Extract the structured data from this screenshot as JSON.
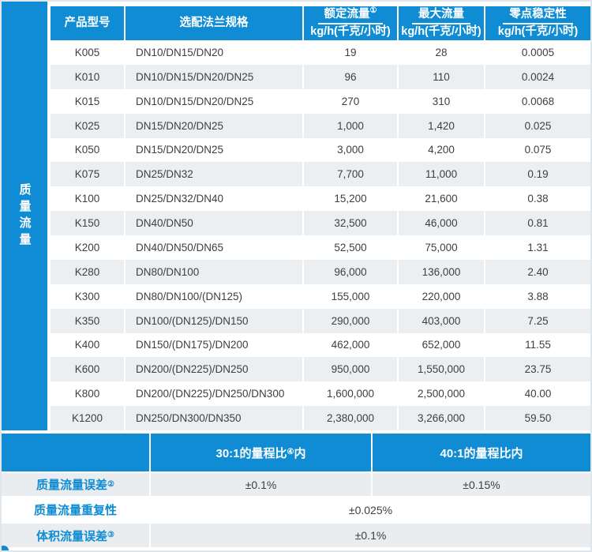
{
  "colors": {
    "accent_blue": "#0f8cd3",
    "row_alt_gray": "#eceff2",
    "bottom_alt_gray": "#e9edf0",
    "text_dark": "#3c4045",
    "frame_border": "#dfe6ec"
  },
  "table": {
    "group_label": "质量流量",
    "columns": [
      {
        "title": "产品型号",
        "sup": "",
        "unit": ""
      },
      {
        "title": "选配法兰规格",
        "sup": "",
        "unit": ""
      },
      {
        "title": "额定流量",
        "sup": "①",
        "unit": "kg/h(千克/小时)"
      },
      {
        "title": "最大流量",
        "sup": "",
        "unit": "kg/h(千克/小时)"
      },
      {
        "title": "零点稳定性",
        "sup": "",
        "unit": "kg/h(千克/小时)"
      }
    ],
    "rows": [
      {
        "model": "K005",
        "flange": "DN10/DN15/DN20",
        "rated": "19",
        "max": "28",
        "zero": "0.0005"
      },
      {
        "model": "K010",
        "flange": "DN10/DN15/DN20/DN25",
        "rated": "96",
        "max": "110",
        "zero": "0.0024"
      },
      {
        "model": "K015",
        "flange": "DN10/DN15/DN20/DN25",
        "rated": "270",
        "max": "310",
        "zero": "0.0068"
      },
      {
        "model": "K025",
        "flange": "DN15/DN20/DN25",
        "rated": "1,000",
        "max": "1,420",
        "zero": "0.025"
      },
      {
        "model": "K050",
        "flange": "DN15/DN20/DN25",
        "rated": "3,000",
        "max": "4,200",
        "zero": "0.075"
      },
      {
        "model": "K075",
        "flange": "DN25/DN32",
        "rated": "7,700",
        "max": "11,000",
        "zero": "0.19"
      },
      {
        "model": "K100",
        "flange": "DN25/DN32/DN40",
        "rated": "15,200",
        "max": "21,600",
        "zero": "0.38"
      },
      {
        "model": "K150",
        "flange": "DN40/DN50",
        "rated": "32,500",
        "max": "46,000",
        "zero": "0.81"
      },
      {
        "model": "K200",
        "flange": "DN40/DN50/DN65",
        "rated": "52,500",
        "max": "75,000",
        "zero": "1.31"
      },
      {
        "model": "K280",
        "flange": "DN80/DN100",
        "rated": "96,000",
        "max": "136,000",
        "zero": "2.40"
      },
      {
        "model": "K300",
        "flange": "DN80/DN100/(DN125)",
        "rated": "155,000",
        "max": "220,000",
        "zero": "3.88"
      },
      {
        "model": "K350",
        "flange": "DN100/(DN125)/DN150",
        "rated": "290,000",
        "max": "403,000",
        "zero": "7.25"
      },
      {
        "model": "K400",
        "flange": "DN150/(DN175)/DN200",
        "rated": "462,000",
        "max": "652,000",
        "zero": "11.55"
      },
      {
        "model": "K600",
        "flange": "DN200/(DN225)/DN250",
        "rated": "950,000",
        "max": "1,550,000",
        "zero": "23.75"
      },
      {
        "model": "K800",
        "flange": "DN200/(DN225)/DN250/DN300",
        "rated": "1,600,000",
        "max": "2,500,000",
        "zero": "40.00"
      },
      {
        "model": "K1200",
        "flange": "DN250/DN300/DN350",
        "rated": "2,380,000",
        "max": "3,266,000",
        "zero": "59.50"
      }
    ]
  },
  "bottom": {
    "range_headers": [
      {
        "pre": "30:1的量程比",
        "sup": "④",
        "post": "内"
      },
      {
        "pre": "40:1的量程比内",
        "sup": "",
        "post": ""
      }
    ],
    "rows": [
      {
        "label": "质量流量误差",
        "sup": "②",
        "value1": "±0.1%",
        "value2": "±0.15%"
      },
      {
        "label": "质量流量重复性",
        "sup": "",
        "merged": "±0.025%"
      },
      {
        "label": "体积流量误差",
        "sup": "③",
        "merged": "±0.1%"
      }
    ]
  }
}
